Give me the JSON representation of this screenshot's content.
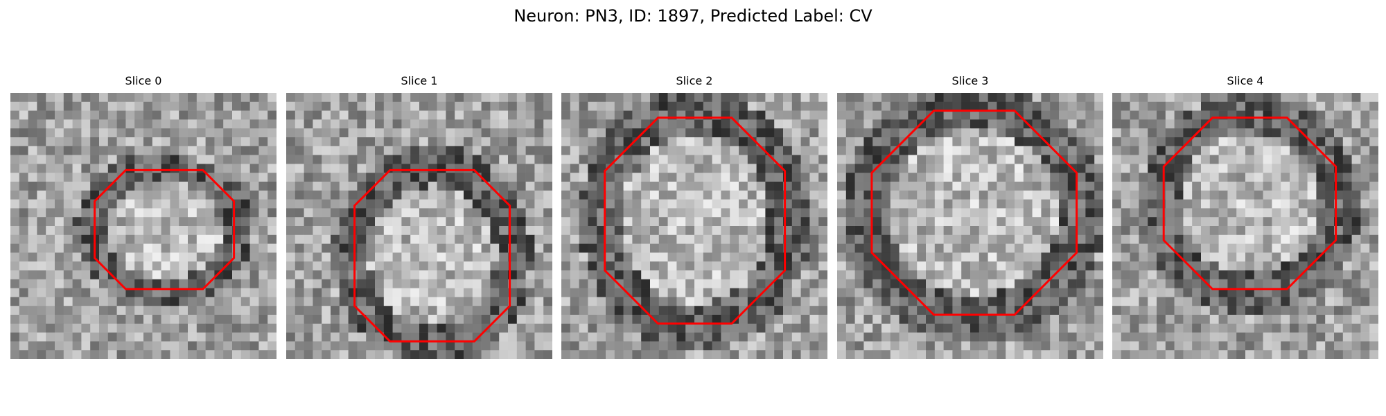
{
  "title": "Neuron: PN3, ID: 1897, Predicted Label: CV",
  "contour_color": "#ff0000",
  "colormap": "gray",
  "slices": [
    {
      "label": "Slice 0",
      "seed": 11
    },
    {
      "label": "Slice 1",
      "seed": 23
    },
    {
      "label": "Slice 2",
      "seed": 37
    },
    {
      "label": "Slice 3",
      "seed": 53
    },
    {
      "label": "Slice 4",
      "seed": 71
    }
  ]
}
